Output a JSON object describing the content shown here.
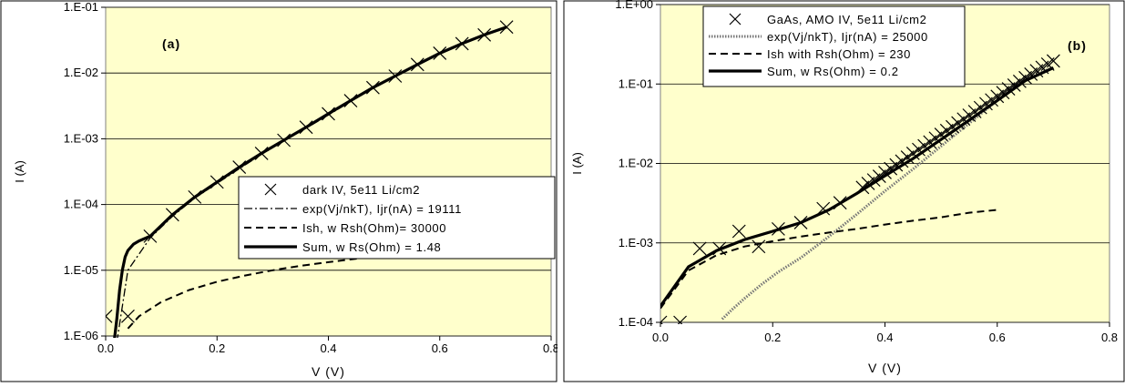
{
  "chart_data": [
    {
      "type": "line",
      "panel_label": "(a)",
      "xlabel": "V (V)",
      "ylabel": "I (A)",
      "xlim": [
        0,
        0.8
      ],
      "ylim": [
        1e-06,
        0.1
      ],
      "y_scale": "log",
      "x_ticks": [
        "0.0",
        "0.2",
        "0.4",
        "0.6",
        "0.8"
      ],
      "y_ticks": [
        "1.E-06",
        "1.E-05",
        "1.E-04",
        "1.E-03",
        "1.E-02",
        "1.E-01"
      ],
      "grid": "horizontal",
      "plot_background": "#FFFFCC",
      "legend_position": "center-right",
      "series": [
        {
          "name": "dark IV, 5e11 Li/cm2",
          "style": "markers-x",
          "x": [
            0.0,
            0.04,
            0.08,
            0.12,
            0.16,
            0.2,
            0.24,
            0.28,
            0.32,
            0.36,
            0.4,
            0.44,
            0.48,
            0.52,
            0.56,
            0.6,
            0.64,
            0.68,
            0.72
          ],
          "y": [
            2e-06,
            2e-06,
            3.3e-05,
            7e-05,
            0.00013,
            0.00022,
            0.00037,
            0.0006,
            0.00095,
            0.0015,
            0.0024,
            0.0038,
            0.006,
            0.009,
            0.0135,
            0.02,
            0.028,
            0.038,
            0.05
          ]
        },
        {
          "name": "exp(Vj/nkT), Ijr(nA) = 19111",
          "style": "dash-dot",
          "x": [
            0.02,
            0.04,
            0.08,
            0.12,
            0.16,
            0.2,
            0.24,
            0.28,
            0.32,
            0.36,
            0.4,
            0.44,
            0.48,
            0.52,
            0.56,
            0.6,
            0.64,
            0.68,
            0.72
          ],
          "y": [
            8e-07,
            1e-05,
            3.1e-05,
            6.6e-05,
            0.000125,
            0.00021,
            0.00035,
            0.00058,
            0.00093,
            0.00145,
            0.0023,
            0.0037,
            0.0058,
            0.0088,
            0.0133,
            0.0195,
            0.0275,
            0.0375,
            0.049
          ]
        },
        {
          "name": "Ish, w Rsh(Ohm)= 30000",
          "style": "dashed",
          "x": [
            0.04,
            0.06,
            0.1,
            0.15,
            0.2,
            0.25,
            0.3,
            0.35,
            0.4,
            0.45,
            0.5
          ],
          "y": [
            1.3e-06,
            2e-06,
            3.3e-06,
            5e-06,
            6.7e-06,
            8.3e-06,
            1e-05,
            1.17e-05,
            1.33e-05,
            1.5e-05,
            1.67e-05
          ]
        },
        {
          "name": "Sum, w Rs(Ohm) = 1.48",
          "style": "solid-thick",
          "x": [
            0.015,
            0.02,
            0.025,
            0.03,
            0.035,
            0.04,
            0.05,
            0.06,
            0.08,
            0.12,
            0.16,
            0.2,
            0.24,
            0.28,
            0.32,
            0.36,
            0.4,
            0.44,
            0.48,
            0.52,
            0.56,
            0.6,
            0.64,
            0.68,
            0.72
          ],
          "y": [
            8e-07,
            1.8e-06,
            5e-06,
            1e-05,
            1.6e-05,
            2e-05,
            2.5e-05,
            2.8e-05,
            3.3e-05,
            7e-05,
            0.00013,
            0.00022,
            0.00037,
            0.0006,
            0.00095,
            0.0015,
            0.0024,
            0.0038,
            0.006,
            0.009,
            0.0135,
            0.02,
            0.028,
            0.038,
            0.05
          ]
        }
      ]
    },
    {
      "type": "line",
      "panel_label": "(b)",
      "xlabel": "V (V)",
      "ylabel": "I (A)",
      "xlim": [
        0,
        0.8
      ],
      "ylim": [
        0.0001,
        1
      ],
      "y_scale": "log",
      "x_ticks": [
        "0.0",
        "0.2",
        "0.4",
        "0.6",
        "0.8"
      ],
      "y_ticks": [
        "1.E-04",
        "1.E-03",
        "1.E-02",
        "1.E-01",
        "1.E+00"
      ],
      "grid": "horizontal",
      "plot_background": "#FFFFCC",
      "legend_position": "top-left",
      "series": [
        {
          "name": "GaAs, AMO IV, 5e11 Li/cm2",
          "style": "markers-x",
          "x": [
            0.0,
            0.035,
            0.07,
            0.105,
            0.14,
            0.175,
            0.21,
            0.25,
            0.29,
            0.32,
            0.36,
            0.37,
            0.38,
            0.39,
            0.4,
            0.41,
            0.42,
            0.43,
            0.44,
            0.45,
            0.46,
            0.47,
            0.48,
            0.49,
            0.5,
            0.51,
            0.52,
            0.53,
            0.54,
            0.55,
            0.56,
            0.57,
            0.58,
            0.59,
            0.6,
            0.61,
            0.62,
            0.63,
            0.64,
            0.65,
            0.66,
            0.67,
            0.68,
            0.69,
            0.7
          ],
          "y": [
            0.0001,
            0.0001,
            0.00085,
            0.00085,
            0.0014,
            0.0009,
            0.0015,
            0.0018,
            0.0027,
            0.0032,
            0.005,
            0.0056,
            0.0062,
            0.0069,
            0.0077,
            0.0086,
            0.0096,
            0.0107,
            0.012,
            0.0134,
            0.015,
            0.0167,
            0.0186,
            0.0208,
            0.0232,
            0.026,
            0.029,
            0.0324,
            0.0362,
            0.0405,
            0.045,
            0.0505,
            0.0565,
            0.063,
            0.07,
            0.078,
            0.087,
            0.097,
            0.108,
            0.12,
            0.133,
            0.147,
            0.162,
            0.178,
            0.195
          ]
        },
        {
          "name": "exp(Vj/nkT), Ijr(nA) = 25000",
          "style": "dotted-band",
          "x": [
            0.11,
            0.13,
            0.15,
            0.18,
            0.21,
            0.25,
            0.3,
            0.35,
            0.4,
            0.45,
            0.5,
            0.55,
            0.6,
            0.65,
            0.7
          ],
          "y": [
            0.00011,
            0.00015,
            0.0002,
            0.0003,
            0.00043,
            0.00065,
            0.0012,
            0.0023,
            0.0045,
            0.0085,
            0.0165,
            0.032,
            0.062,
            0.12,
            0.16
          ]
        },
        {
          "name": "Ish with Rsh(Ohm) = 230",
          "style": "dashed",
          "x": [
            0.0,
            0.05,
            0.1,
            0.15,
            0.2,
            0.25,
            0.3,
            0.35,
            0.4,
            0.45,
            0.5,
            0.55,
            0.6
          ],
          "y": [
            0.00015,
            0.00045,
            0.0007,
            0.0009,
            0.00105,
            0.0012,
            0.00135,
            0.0015,
            0.0017,
            0.0019,
            0.0021,
            0.0024,
            0.0026
          ]
        },
        {
          "name": "Sum, w Rs(Ohm) = 0.2",
          "style": "solid-thick",
          "x": [
            0.0,
            0.05,
            0.1,
            0.15,
            0.2,
            0.25,
            0.3,
            0.35,
            0.4,
            0.45,
            0.5,
            0.55,
            0.6,
            0.65,
            0.7
          ],
          "y": [
            0.00016,
            0.0005,
            0.0008,
            0.0011,
            0.0014,
            0.0018,
            0.0026,
            0.0042,
            0.007,
            0.0115,
            0.02,
            0.035,
            0.062,
            0.11,
            0.16
          ]
        }
      ]
    }
  ]
}
